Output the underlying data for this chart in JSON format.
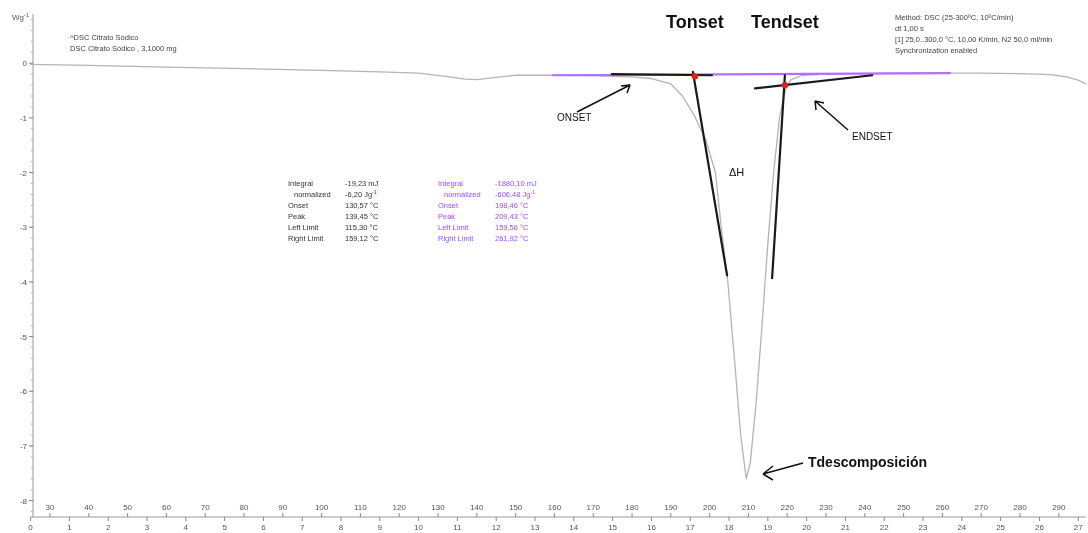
{
  "chart_data": {
    "type": "line",
    "ylabel": "Wg$^{-1}$",
    "xlim": [
      25,
      297
    ],
    "xticks": [
      30,
      40,
      50,
      60,
      70,
      80,
      90,
      100,
      110,
      120,
      130,
      140,
      150,
      160,
      170,
      180,
      190,
      200,
      210,
      220,
      230,
      240,
      250,
      260,
      270,
      280,
      290
    ],
    "x2lim": [
      0,
      27.2
    ],
    "x2ticks": [
      0,
      1,
      2,
      3,
      4,
      5,
      6,
      7,
      8,
      9,
      10,
      11,
      12,
      13,
      14,
      15,
      16,
      17,
      18,
      19,
      20,
      21,
      22,
      23,
      24,
      25,
      26,
      27
    ],
    "ylim": [
      -8.3,
      0.9
    ],
    "yticks": [
      0,
      -1,
      -2,
      -3,
      -4,
      -5,
      -6,
      -7,
      -8
    ],
    "grid": false,
    "marker": "none",
    "line_style": "solid",
    "series": [
      {
        "color": "#b4b4b4",
        "x": [
          25,
          40,
          60,
          80,
          100,
          115,
          125,
          132,
          137,
          140,
          145,
          150,
          160,
          170,
          180,
          185,
          190,
          193,
          196,
          199,
          201.5,
          203,
          204.7,
          206.5,
          208,
          209.43,
          210.5,
          212,
          213.5,
          215,
          216.5,
          218,
          219.5,
          221,
          224,
          230,
          240,
          250,
          260,
          270,
          280,
          288,
          292,
          295,
          297
        ],
        "values": [
          -0.02,
          -0.04,
          -0.07,
          -0.1,
          -0.13,
          -0.16,
          -0.18,
          -0.24,
          -0.29,
          -0.3,
          -0.26,
          -0.22,
          -0.22,
          -0.23,
          -0.25,
          -0.28,
          -0.38,
          -0.6,
          -0.95,
          -1.4,
          -2.0,
          -3.0,
          -4.0,
          -5.5,
          -6.8,
          -7.6,
          -7.3,
          -6.2,
          -4.8,
          -3.3,
          -2.0,
          -1.0,
          -0.5,
          -0.3,
          -0.22,
          -0.2,
          -0.19,
          -0.18,
          -0.18,
          -0.18,
          -0.19,
          -0.21,
          -0.25,
          -0.31,
          -0.38
        ]
      },
      {
        "color": "#b070ff",
        "x": [
          159.56,
          261.92
        ],
        "values": [
          -0.22,
          -0.18
        ]
      },
      {
        "color": "#1a1a1a",
        "x": [
          174.8,
          200.6
        ],
        "values": [
          -0.2,
          -0.22
        ]
      },
      {
        "color": "#1a1a1a",
        "x": [
          195.7,
          204.5
        ],
        "values": [
          -0.16,
          -3.88
        ]
      },
      {
        "color": "#1a1a1a",
        "x": [
          211.7,
          241.9
        ],
        "values": [
          -0.46,
          -0.22
        ]
      },
      {
        "color": "#1a1a1a",
        "x": [
          216.1,
          219.4
        ],
        "values": [
          -3.93,
          -0.22
        ]
      },
      {
        "type": "scatter",
        "marker": "circle",
        "color": "#e02020",
        "x": [
          196.2,
          219.4
        ],
        "values": [
          -0.24,
          -0.4
        ]
      }
    ],
    "annotations": [
      "^DSC Citrato Sódico",
      "DSC Citrato Sódico , 3,1000 mg",
      "Method: DSC (25-300ºC, 10ºC/min)",
      "dt 1,00 s",
      "[1] 25,0..300,0 °C, 10,00 K/min, N2 50,0 ml/min",
      "Synchronization enabled",
      "Integral",
      "-19,23 mJ",
      "normalized",
      "-6,20 Jg$^{-1}$",
      "Onset",
      "130,57 °C",
      "Peak",
      "139,45 °C",
      "Left Limit",
      "115,30 °C",
      "Right Limit",
      "159,12 °C",
      "Integral",
      "-1880,10 mJ",
      "normalized",
      "-606,48 Jg$^{-1}$",
      "Onset",
      "198,46 °C",
      "Peak",
      "209,43 °C",
      "Left Limit",
      "159,56 °C",
      "Right Limit",
      "261,92 °C",
      {
        "text": "Tonset",
        "x": 196.2,
        "y": -0.24
      },
      {
        "text": "Tendset",
        "x": 219.4,
        "y": -0.4
      },
      "ONSET",
      "ENDSET",
      "ΔH",
      "Tdescomposición"
    ]
  }
}
